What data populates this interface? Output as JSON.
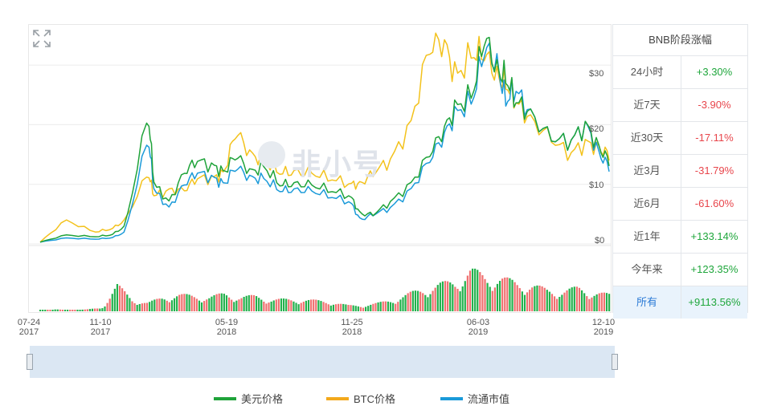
{
  "watermark": "非小号",
  "table": {
    "title": "BNB阶段涨幅",
    "rows": [
      {
        "label": "24小时",
        "value": "+3.30%",
        "color": "#1ea63b"
      },
      {
        "label": "近7天",
        "value": "-3.90%",
        "color": "#e8454b"
      },
      {
        "label": "近30天",
        "value": "-17.11%",
        "color": "#e8454b"
      },
      {
        "label": "近3月",
        "value": "-31.79%",
        "color": "#e8454b"
      },
      {
        "label": "近6月",
        "value": "-61.60%",
        "color": "#e8454b"
      },
      {
        "label": "近1年",
        "value": "+133.14%",
        "color": "#1ea63b"
      },
      {
        "label": "今年来",
        "value": "+123.35%",
        "color": "#1ea63b"
      },
      {
        "label": "所有",
        "value": "+9113.56%",
        "color": "#1ea63b"
      }
    ]
  },
  "chart_data": {
    "type": "line",
    "x_ticks": [
      {
        "date": "07-24",
        "year": "2017"
      },
      {
        "date": "11-10",
        "year": "2017"
      },
      {
        "date": "05-19",
        "year": "2018"
      },
      {
        "date": "11-25",
        "year": "2018"
      },
      {
        "date": "06-03",
        "year": "2019"
      },
      {
        "date": "12-10",
        "year": "2019"
      }
    ],
    "y_ticks": [
      "$30",
      "$20",
      "$10",
      "$0"
    ],
    "ylim": [
      0,
      35
    ],
    "x": [
      "2017-07-24",
      "2017-09-01",
      "2017-10-15",
      "2017-11-10",
      "2017-12-01",
      "2018-01-05",
      "2018-01-14",
      "2018-02-06",
      "2018-03-01",
      "2018-03-20",
      "2018-04-15",
      "2018-05-01",
      "2018-05-19",
      "2018-06-10",
      "2018-07-01",
      "2018-07-25",
      "2018-08-15",
      "2018-09-10",
      "2018-10-10",
      "2018-11-10",
      "2018-11-25",
      "2018-12-15",
      "2019-01-10",
      "2019-02-10",
      "2019-03-10",
      "2019-04-01",
      "2019-04-20",
      "2019-05-15",
      "2019-06-03",
      "2019-06-22",
      "2019-07-05",
      "2019-07-20",
      "2019-08-10",
      "2019-09-10",
      "2019-10-10",
      "2019-11-05",
      "2019-11-25",
      "2019-12-10"
    ],
    "series": [
      {
        "name": "美元价格",
        "color": "#1fa33a",
        "values": [
          0.3,
          1.5,
          1.2,
          1.5,
          3,
          22,
          10,
          7,
          12,
          14,
          13,
          12,
          15,
          12,
          13,
          10,
          10,
          10,
          9,
          8,
          5,
          5,
          7,
          10,
          15,
          19,
          23,
          25,
          35,
          29,
          28,
          24,
          22,
          18,
          17,
          20,
          16,
          14
        ]
      },
      {
        "name": "BTC价格",
        "color": "#f3c21c",
        "values": [
          0.3,
          4,
          2,
          2.5,
          4,
          12,
          8,
          9,
          9,
          11,
          11,
          12,
          19,
          15,
          14,
          12,
          12,
          12,
          11,
          10,
          10,
          12,
          14,
          20,
          33,
          34,
          28,
          32,
          32,
          28,
          27,
          24,
          21,
          18,
          15,
          17,
          16,
          15
        ]
      },
      {
        "name": "流通市值",
        "color": "#1a9ad9",
        "values": [
          0.3,
          1,
          0.8,
          1,
          2,
          18,
          9,
          6,
          10,
          12,
          11,
          10,
          13,
          11,
          11,
          9,
          9,
          9,
          8,
          7,
          4,
          5,
          6,
          9,
          14,
          18,
          22,
          24,
          33,
          30,
          24,
          26,
          22,
          18,
          17,
          20,
          15,
          13
        ]
      }
    ],
    "volume": {
      "up_color": "#22b14c",
      "down_color": "#f07070"
    }
  }
}
